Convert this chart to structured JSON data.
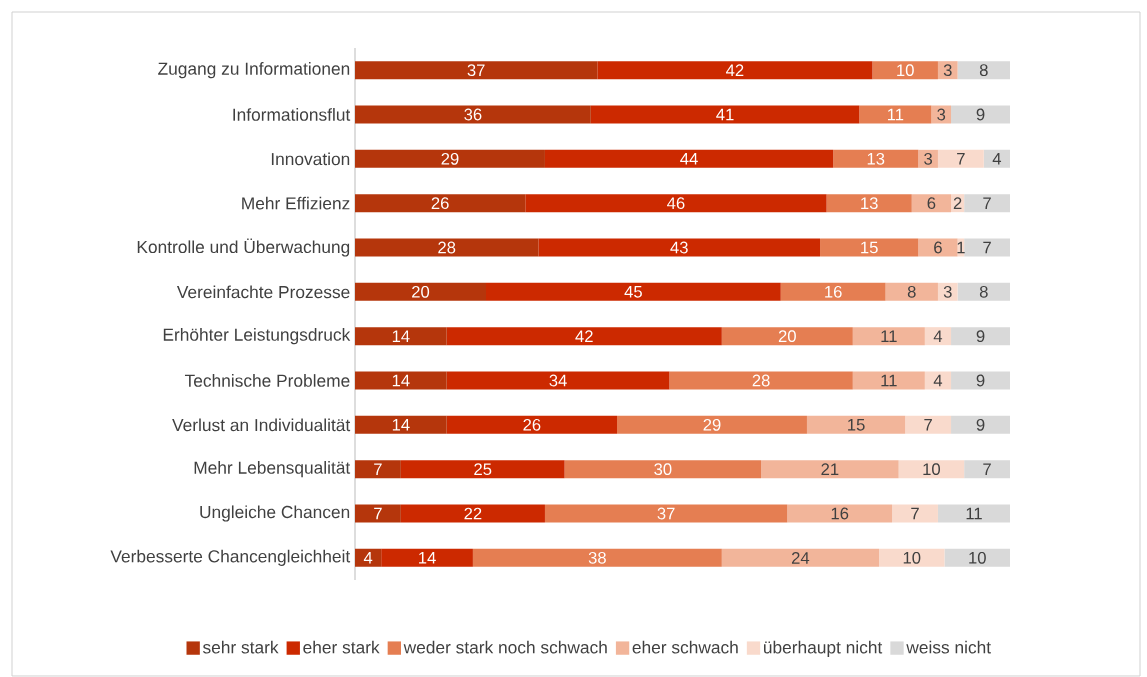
{
  "chart_data": {
    "type": "bar",
    "orientation": "horizontal",
    "stacked": true,
    "data_labels": true,
    "legend": "bottom",
    "grid": false,
    "tick_labels": "y",
    "xlim": [
      0,
      100
    ],
    "categories": [
      "Zugang zu Informationen",
      "Informationsflut",
      "Innovation",
      "Mehr Effizienz",
      "Kontrolle und Überwachung",
      "Vereinfachte Prozesse",
      "Erhöhter Leistungsdruck",
      "Technische Probleme",
      "Verlust an Individualität",
      "Mehr Lebensqualität",
      "Ungleiche Chancen",
      "Verbesserte Chancengleichheit"
    ],
    "series": [
      {
        "name": "sehr stark",
        "color": "#b5360c",
        "values": [
          37,
          36,
          29,
          26,
          28,
          20,
          14,
          14,
          14,
          7,
          7,
          4
        ]
      },
      {
        "name": "eher stark",
        "color": "#cc2900",
        "values": [
          42,
          41,
          44,
          46,
          43,
          45,
          42,
          34,
          26,
          25,
          22,
          14
        ]
      },
      {
        "name": "weder stark noch schwach",
        "color": "#e57e52",
        "values": [
          10,
          11,
          13,
          13,
          15,
          16,
          20,
          28,
          29,
          30,
          37,
          38
        ]
      },
      {
        "name": "eher schwach",
        "color": "#f2b59a",
        "values": [
          3,
          3,
          3,
          6,
          6,
          8,
          11,
          11,
          15,
          21,
          16,
          24
        ]
      },
      {
        "name": "überhaupt nicht",
        "color": "#f9dacc",
        "values": [
          null,
          null,
          7,
          2,
          1,
          3,
          4,
          4,
          7,
          10,
          7,
          10
        ]
      },
      {
        "name": "weiss nicht",
        "color": "#d9d9d9",
        "values": [
          8,
          9,
          4,
          7,
          7,
          8,
          9,
          9,
          9,
          7,
          11,
          10
        ]
      }
    ]
  }
}
